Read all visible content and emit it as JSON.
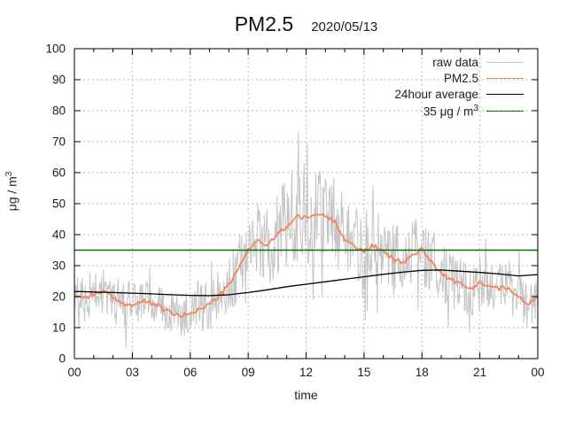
{
  "window": {
    "title_main": "PM2.5",
    "title_date": "2020/05/13"
  },
  "axes": {
    "x": {
      "label": "time",
      "tick_hours": [
        0,
        3,
        6,
        9,
        12,
        15,
        18,
        21,
        24
      ],
      "tick_labels": [
        "00",
        "03",
        "06",
        "09",
        "12",
        "15",
        "18",
        "21",
        "00"
      ],
      "minor_step_hours": 1,
      "range_hours": [
        0,
        24
      ]
    },
    "y": {
      "label": "μg / m",
      "label_sup": "3",
      "tick_values": [
        0,
        10,
        20,
        30,
        40,
        50,
        60,
        70,
        80,
        90,
        100
      ],
      "tick_labels": [
        "0",
        "10",
        "20",
        "30",
        "40",
        "50",
        "60",
        "70",
        "80",
        "90",
        "100"
      ],
      "range": [
        0,
        100
      ]
    }
  },
  "legend": {
    "entries": [
      {
        "label": "raw data",
        "series": "raw"
      },
      {
        "label": "PM2.5",
        "series": "pm25"
      },
      {
        "label": "24hour average",
        "series": "avg"
      },
      {
        "label": "35 μg / m",
        "sup": "3",
        "series": "threshold"
      }
    ]
  },
  "chart_data": {
    "type": "line",
    "title": "PM2.5  2020/05/13",
    "xlabel": "time",
    "ylabel": "μg / m³",
    "xlim_hours": [
      0,
      24
    ],
    "ylim": [
      0,
      100
    ],
    "grid": true,
    "grid_color": "#b8b8b8",
    "x_gridline_hours": [
      3,
      6,
      9,
      12,
      15,
      18,
      21
    ],
    "y_gridline_values": [
      10,
      20,
      30,
      40,
      50,
      60,
      70,
      80,
      90
    ],
    "threshold": {
      "name": "35 μg / m³",
      "value": 35,
      "color": "#0c6b0c",
      "width": 1.4
    },
    "series": [
      {
        "key": "pm25",
        "name": "PM2.5",
        "color": "#f5835e",
        "width": 1.8,
        "x_step_hours": 0.5,
        "jitter": 0.7,
        "jitter_seed": 99,
        "values": [
          20.5,
          19.8,
          20.6,
          21.9,
          19.4,
          17.8,
          17.2,
          18.5,
          17.9,
          16.3,
          14.9,
          13.4,
          14.9,
          15.9,
          17.6,
          20.2,
          23.8,
          28.8,
          35.4,
          38.2,
          36.2,
          40.3,
          42.6,
          45.8,
          45.3,
          46.6,
          46.1,
          44.2,
          38.6,
          36.0,
          34.8,
          36.6,
          34.3,
          32.2,
          30.9,
          33.4,
          35.3,
          31.4,
          27.4,
          25.5,
          23.9,
          22.5,
          24.4,
          24.0,
          22.6,
          23.0,
          20.0,
          17.2,
          20.4
        ]
      },
      {
        "key": "avg",
        "name": "24hour average",
        "color": "#000000",
        "width": 1.3,
        "x_step_hours": 1,
        "values": [
          21.7,
          21.5,
          21.3,
          21.1,
          20.9,
          20.6,
          20.4,
          20.3,
          20.6,
          21.3,
          22.2,
          23.2,
          24.0,
          24.8,
          25.6,
          26.4,
          27.2,
          27.9,
          28.5,
          28.6,
          28.2,
          27.8,
          27.3,
          26.7,
          27.1
        ]
      },
      {
        "key": "raw",
        "name": "raw data",
        "color": "#c6c6c6",
        "width": 1,
        "synthetic_noise": true,
        "sample_minutes": 2,
        "seed": 20200513,
        "spike_chance": 0.08,
        "spike_gain": 1.9,
        "big_spike_chance": 0.012,
        "big_spike_gain": 2.6,
        "clamp": [
          1.5,
          99
        ],
        "amplitude_by_hour": [
          8,
          8,
          8,
          7.5,
          7,
          6.5,
          7,
          8.5,
          10,
          11,
          13,
          15,
          15,
          14.5,
          13.5,
          12.5,
          12,
          11.5,
          11,
          9.5,
          9,
          9,
          8.5,
          8,
          8
        ]
      }
    ]
  },
  "plot_style": {
    "border_color": "#000000",
    "tick_color": "#000000",
    "text_color": "#1c1c1c"
  }
}
